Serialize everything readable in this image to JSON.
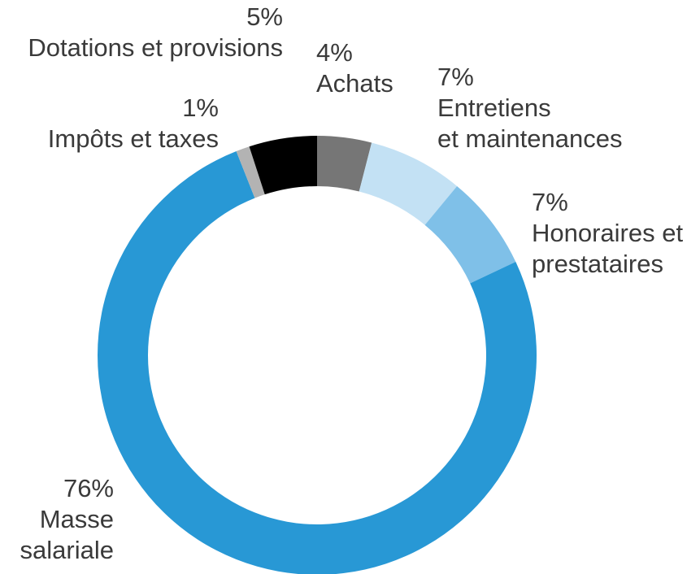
{
  "chart_data": {
    "type": "pie",
    "donut": true,
    "slices": [
      {
        "key": "achats",
        "value": 4,
        "percent_label": "4%",
        "label_lines": [
          "Achats"
        ],
        "color": "#767676"
      },
      {
        "key": "entretiens",
        "value": 7,
        "percent_label": "7%",
        "label_lines": [
          "Entretiens",
          "et maintenances"
        ],
        "color": "#c3e1f4"
      },
      {
        "key": "honoraires",
        "value": 7,
        "percent_label": "7%",
        "label_lines": [
          "Honoraires et",
          "prestataires"
        ],
        "color": "#7fc0e8"
      },
      {
        "key": "masse",
        "value": 76,
        "percent_label": "76%",
        "label_lines": [
          "Masse",
          "salariale"
        ],
        "color": "#2898d5"
      },
      {
        "key": "impots",
        "value": 1,
        "percent_label": "1%",
        "label_lines": [
          "Impôts et taxes"
        ],
        "color": "#b3b3b3"
      },
      {
        "key": "dotations",
        "value": 5,
        "percent_label": "5%",
        "label_lines": [
          "Dotations et provisions"
        ],
        "color": "#000000"
      }
    ]
  }
}
